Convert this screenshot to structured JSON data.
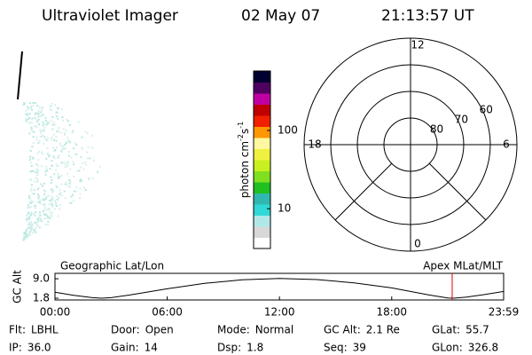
{
  "header": {
    "instrument": "Ultraviolet Imager",
    "date": "02 May 07",
    "time": "21:13:57 UT"
  },
  "colorbar": {
    "label": [
      "photon cm",
      "-2",
      "s",
      "-1"
    ],
    "log": true,
    "lim": [
      3.1,
      575
    ],
    "ticks": [
      10,
      100
    ],
    "colors": [
      "#ffffff",
      "#d8d8d8",
      "#b0e8e8",
      "#30d8d8",
      "#30b8b0",
      "#20c020",
      "#80e020",
      "#c8f020",
      "#f0f040",
      "#fff8a0",
      "#ff9800",
      "#f02000",
      "#c00000",
      "#c000a0",
      "#500060",
      "#000030"
    ]
  },
  "polar": {
    "lat_min": 50,
    "lat_rings": [
      60,
      70,
      80
    ],
    "mlt_labels": [
      12,
      18,
      6,
      0
    ]
  },
  "orbit": {
    "title_left": "Geographic Lat/Lon",
    "title_right": "Apex MLat/MLT",
    "ylabel": "GC Alt",
    "x": [
      0,
      1,
      2,
      2.5,
      3,
      4,
      6,
      8,
      10,
      12,
      14,
      16,
      18,
      20,
      21,
      21.3,
      22,
      23,
      23.983
    ],
    "values": [
      4.0,
      2.9,
      2.0,
      1.8,
      2.0,
      3.0,
      5.3,
      7.3,
      8.6,
      9.1,
      8.7,
      7.5,
      5.6,
      3.0,
      1.9,
      1.8,
      2.2,
      3.2,
      4.3
    ],
    "xlim": [
      0,
      23.983
    ],
    "ylim": [
      1.15,
      11
    ],
    "xticks": [
      {
        "value": 0,
        "label": "00:00"
      },
      {
        "value": 6,
        "label": "06:00"
      },
      {
        "value": 12,
        "label": "12:00"
      },
      {
        "value": 18,
        "label": "18:00"
      },
      {
        "value": 23.983,
        "label": "23:59"
      }
    ],
    "yticks": [
      1.8,
      {
        "value": 9,
        "label": "9.0"
      }
    ],
    "marker_x": 21.2325,
    "marker_color": "#e00000"
  },
  "info": [
    [
      {
        "label": "Flt:",
        "value": "LBHL"
      },
      {
        "label": "Door:",
        "value": "Open"
      },
      {
        "label": "Mode:",
        "value": "Normal"
      },
      {
        "label": "GC Alt:",
        "value": "2.1 Re"
      },
      {
        "label": "GLat:",
        "value": "55.7"
      }
    ],
    [
      {
        "label": "IP:",
        "value": "36.0"
      },
      {
        "label": "Gain:",
        "value": "14"
      },
      {
        "label": "Dsp:",
        "value": "1.8"
      },
      {
        "label": "Seq:",
        "value": "39"
      },
      {
        "label": "GLon:",
        "value": "326.8"
      }
    ]
  ]
}
